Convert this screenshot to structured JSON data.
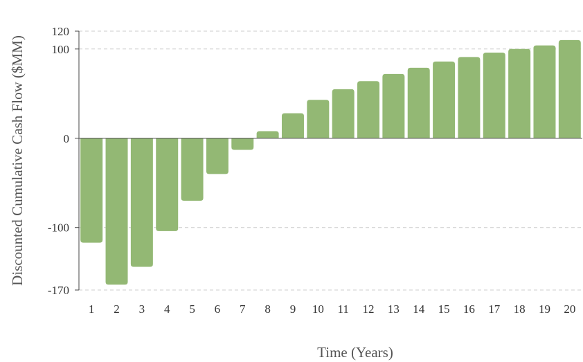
{
  "chart_data": {
    "type": "bar",
    "xlabel": "Time (Years)",
    "ylabel": "Discounted Cumulative Cash Flow ($MM)",
    "categories": [
      "1",
      "2",
      "3",
      "4",
      "5",
      "6",
      "7",
      "8",
      "9",
      "10",
      "11",
      "12",
      "13",
      "14",
      "15",
      "16",
      "17",
      "18",
      "19",
      "20"
    ],
    "values": [
      -117,
      -164,
      -144,
      -104,
      -70,
      -40,
      -13,
      8,
      28,
      43,
      55,
      64,
      72,
      79,
      86,
      91,
      96,
      100,
      104,
      110
    ],
    "ylim": [
      -170,
      120
    ],
    "yticks": [
      -170,
      -100,
      0,
      100,
      120
    ],
    "grid": true,
    "colors": {
      "bar": "#93b874",
      "grid": "#cccccc",
      "axis": "#444444"
    }
  }
}
